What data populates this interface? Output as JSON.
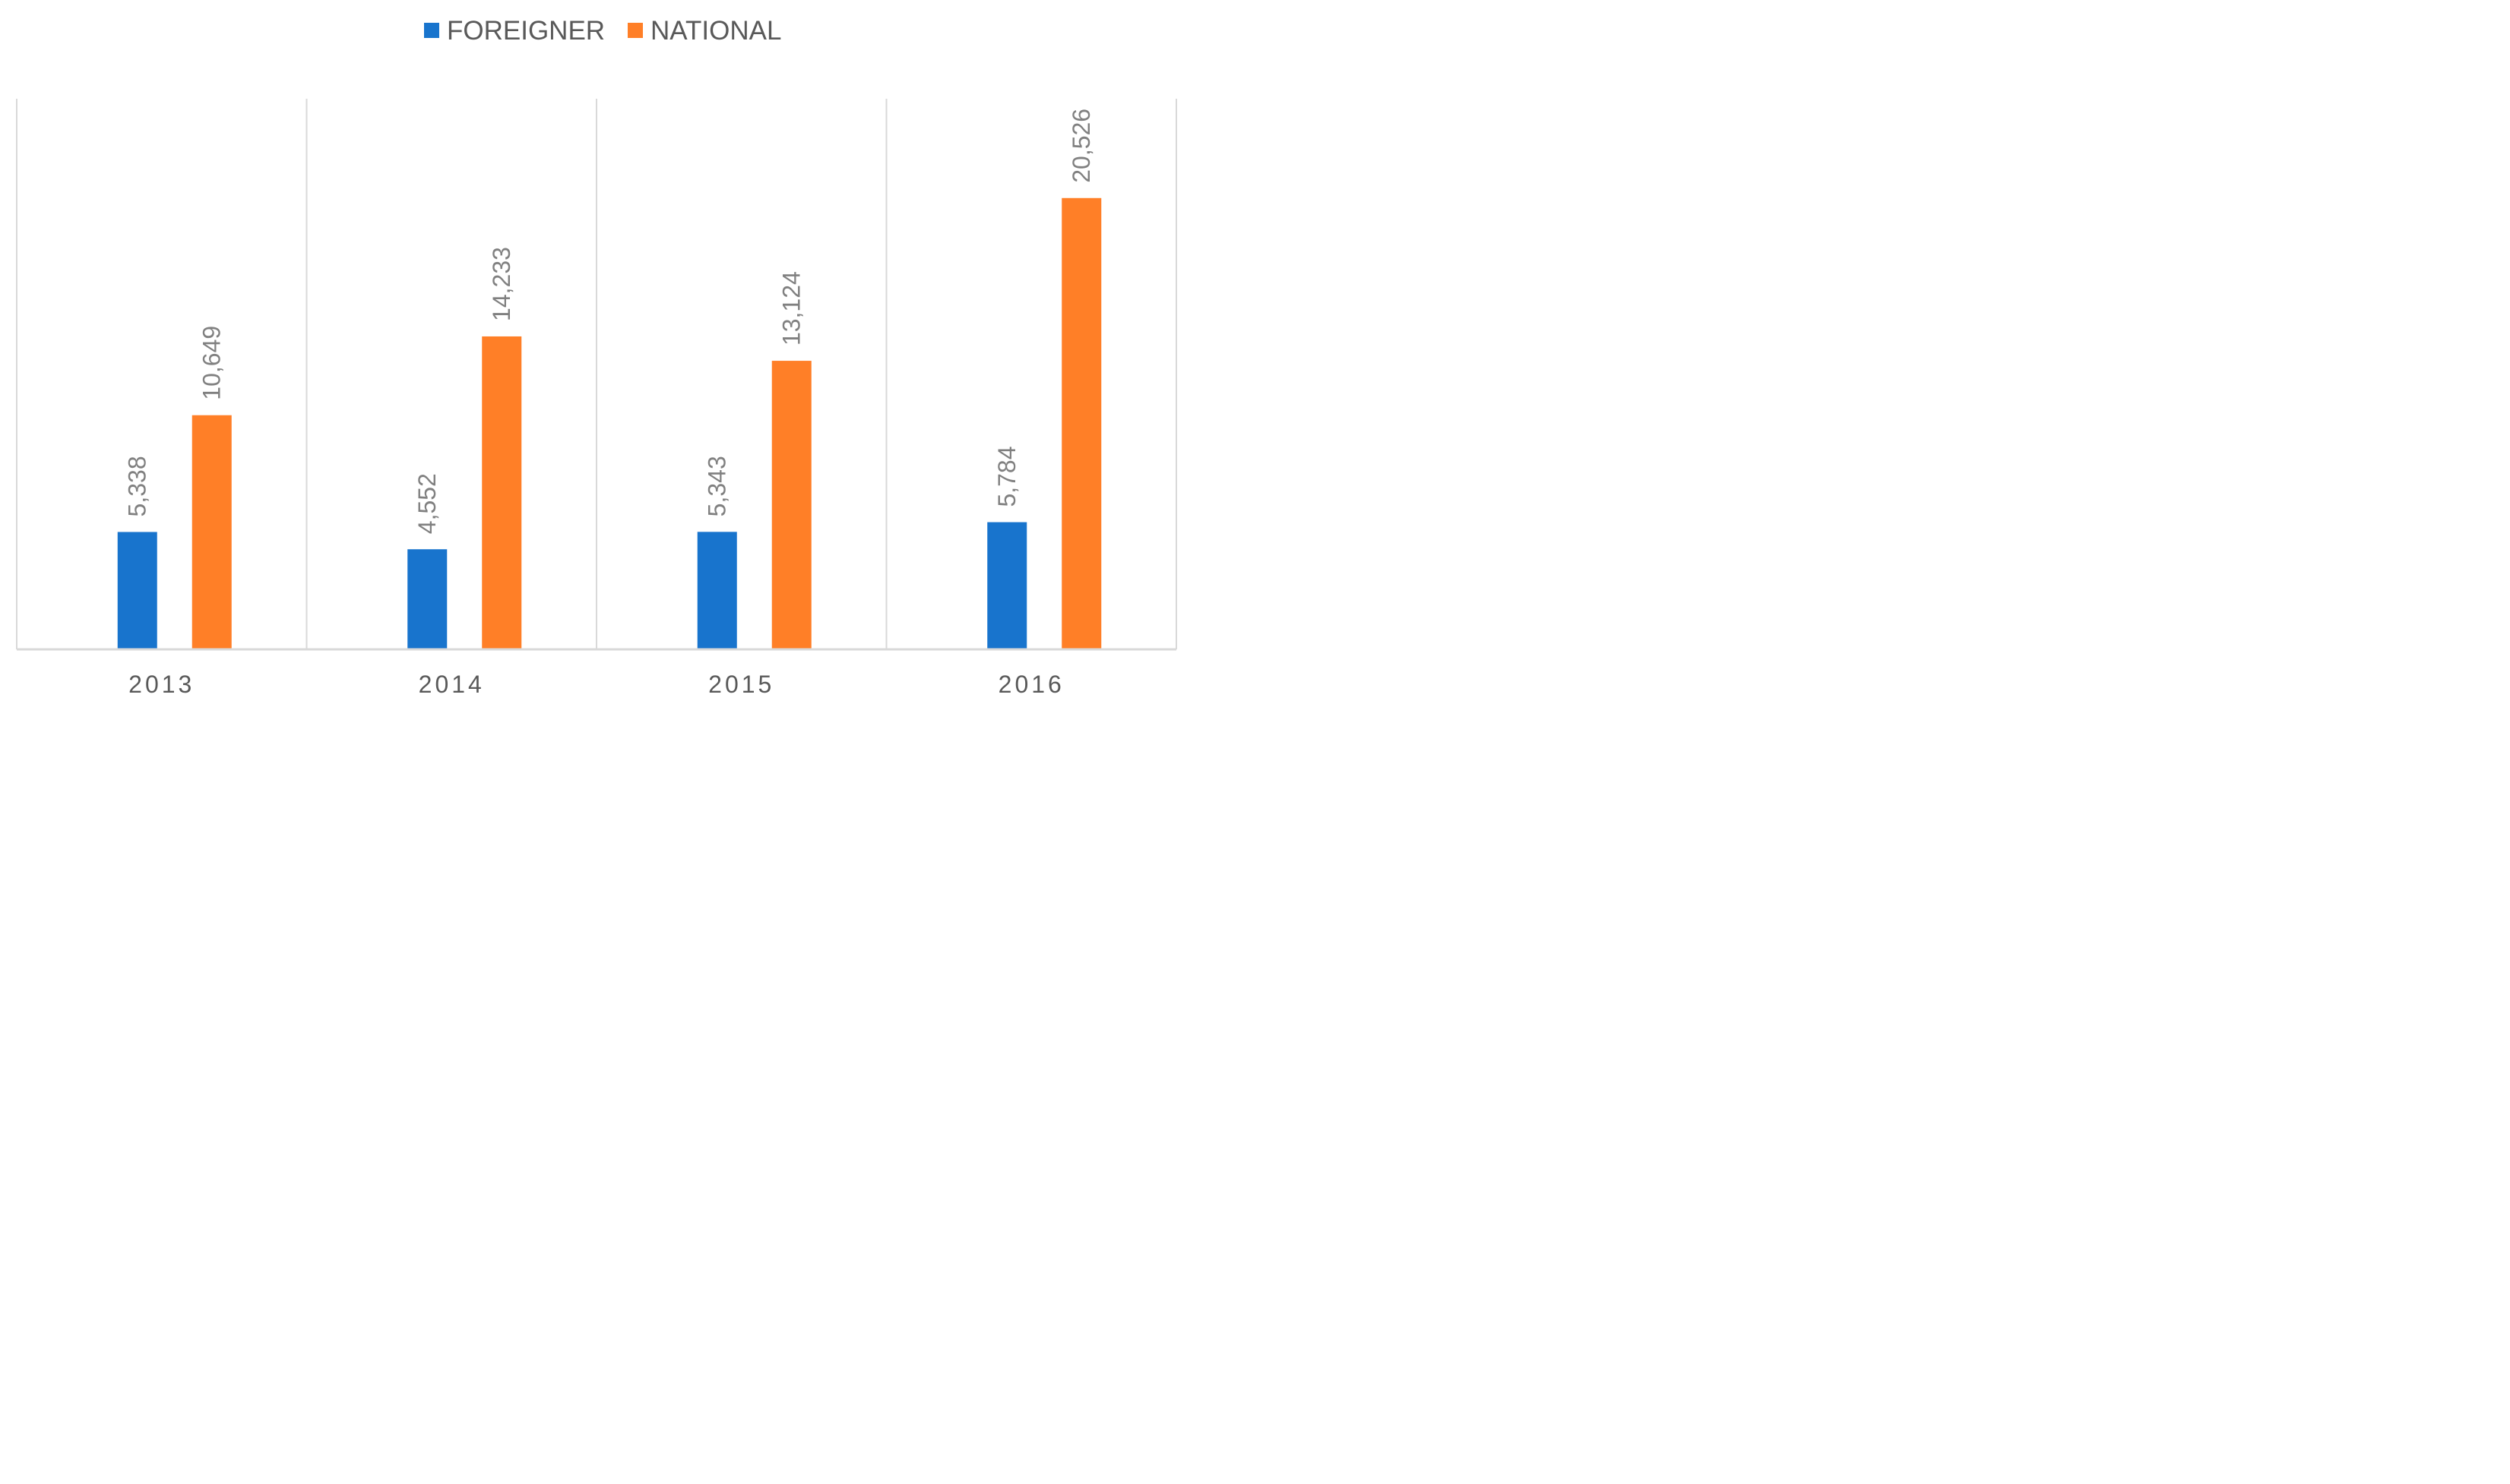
{
  "chart_data": {
    "type": "bar",
    "title": "",
    "xlabel": "",
    "ylabel": "",
    "categories": [
      "2013",
      "2014",
      "2015",
      "2016"
    ],
    "series": [
      {
        "name": "FOREIGNER",
        "color": "#1874CD",
        "values": [
          5338,
          4552,
          5343,
          5784
        ],
        "labels": [
          "5,338",
          "4,552",
          "5,343",
          "5,784"
        ]
      },
      {
        "name": "NATIONAL",
        "color": "#FF7F27",
        "values": [
          10649,
          14233,
          13124,
          20526
        ],
        "labels": [
          "10,649",
          "14,233",
          "13,124",
          "20,526"
        ]
      }
    ],
    "ylim": [
      0,
      25000
    ],
    "y_axis_visible": false,
    "grid": "vertical category separators",
    "legend_position": "top-center",
    "data_labels": "above bars, rotated vertical"
  }
}
